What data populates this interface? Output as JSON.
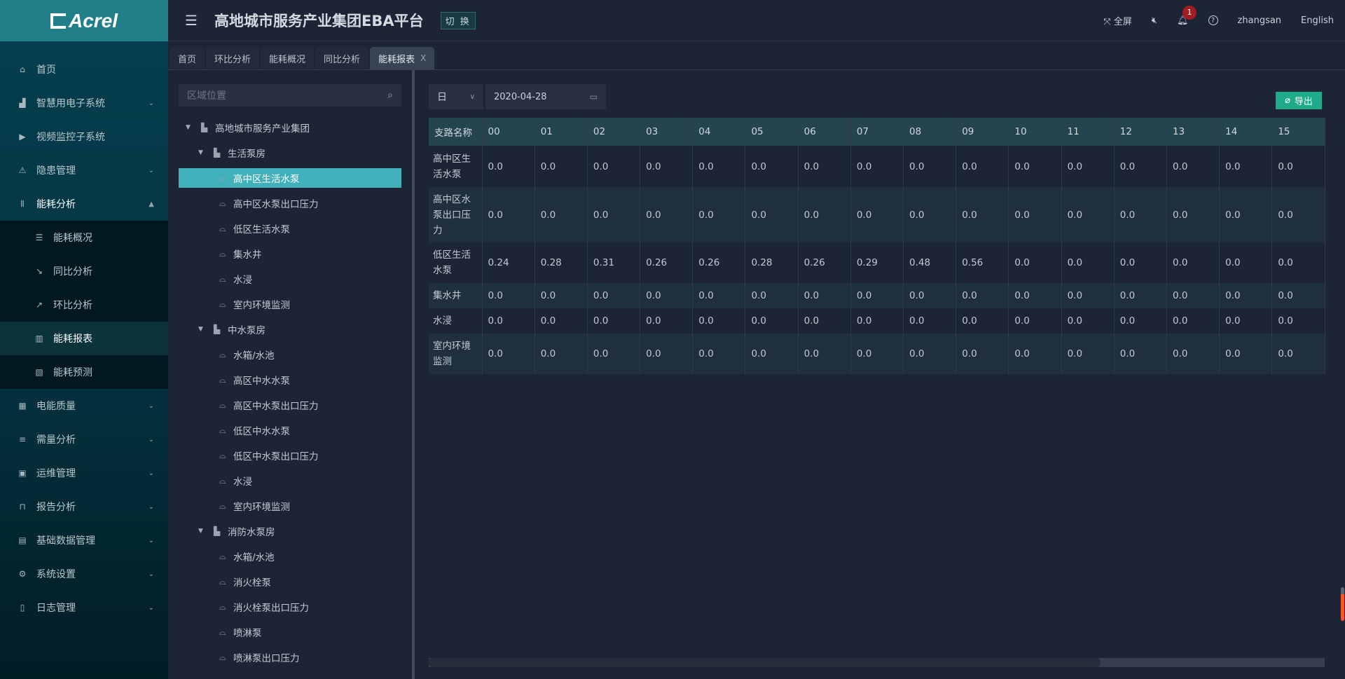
{
  "brand": {
    "logo_text": "Acrel"
  },
  "header": {
    "title": "高地城市服务产业集团EBA平台",
    "switch_label": "切 换",
    "fullscreen_label": "全屏",
    "notification_count": "1",
    "user": "zhangsan",
    "language": "English"
  },
  "sidebar": {
    "items": [
      {
        "label": "首页",
        "icon": "home-icon",
        "glyph": "⌂"
      },
      {
        "label": "智慧用电子系统",
        "icon": "chart-area-icon",
        "glyph": "▟",
        "chev": "⌄"
      },
      {
        "label": "视频监控子系统",
        "icon": "video-icon",
        "glyph": "▶"
      },
      {
        "label": "隐患管理",
        "icon": "warning-icon",
        "glyph": "⚠",
        "chev": "⌄"
      },
      {
        "label": "能耗分析",
        "icon": "energy-icon",
        "glyph": "⦀",
        "chev": "⌃",
        "open": true
      }
    ],
    "subitems": [
      {
        "label": "能耗概况",
        "icon": "list-icon",
        "glyph": "☰"
      },
      {
        "label": "同比分析",
        "icon": "trend-down-icon",
        "glyph": "↘"
      },
      {
        "label": "环比分析",
        "icon": "trend-up-icon",
        "glyph": "↗"
      },
      {
        "label": "能耗报表",
        "icon": "bar-chart-icon",
        "glyph": "▥",
        "active": true
      },
      {
        "label": "能耗预测",
        "icon": "line-chart-icon",
        "glyph": "▧"
      }
    ],
    "items_after": [
      {
        "label": "电能质量",
        "icon": "calendar-icon",
        "glyph": "▦",
        "chev": "⌄"
      },
      {
        "label": "需量分析",
        "icon": "lines-icon",
        "glyph": "≡",
        "chev": "⌄"
      },
      {
        "label": "运维管理",
        "icon": "maintenance-icon",
        "glyph": "▣",
        "chev": "⌄"
      },
      {
        "label": "报告分析",
        "icon": "lock-icon",
        "glyph": "⊓",
        "chev": "⌄"
      },
      {
        "label": "基础数据管理",
        "icon": "grid-icon",
        "glyph": "▤",
        "chev": "⌄"
      },
      {
        "label": "系统设置",
        "icon": "gear-icon",
        "glyph": "⚙",
        "chev": "⌄"
      },
      {
        "label": "日志管理",
        "icon": "log-icon",
        "glyph": "▯",
        "chev": "⌄"
      }
    ]
  },
  "tabs": [
    {
      "label": "首页"
    },
    {
      "label": "环比分析"
    },
    {
      "label": "能耗概况"
    },
    {
      "label": "同比分析"
    },
    {
      "label": "能耗报表",
      "active": true,
      "close": "X"
    }
  ],
  "tree": {
    "search_placeholder": "区域位置",
    "nodes": [
      {
        "label": "高地城市服务产业集团",
        "level": 0,
        "type": "building"
      },
      {
        "label": "生活泵房",
        "level": 1,
        "type": "building"
      },
      {
        "label": "高中区生活水泵",
        "level": 2,
        "type": "meter",
        "selected": true
      },
      {
        "label": "高中区水泵出口压力",
        "level": 2,
        "type": "meter"
      },
      {
        "label": "低区生活水泵",
        "level": 2,
        "type": "meter"
      },
      {
        "label": "集水井",
        "level": 2,
        "type": "meter"
      },
      {
        "label": "水浸",
        "level": 2,
        "type": "meter"
      },
      {
        "label": "室内环境监测",
        "level": 2,
        "type": "meter"
      },
      {
        "label": "中水泵房",
        "level": 1,
        "type": "building"
      },
      {
        "label": "水箱/水池",
        "level": 2,
        "type": "meter"
      },
      {
        "label": "高区中水水泵",
        "level": 2,
        "type": "meter"
      },
      {
        "label": "高区中水泵出口压力",
        "level": 2,
        "type": "meter"
      },
      {
        "label": "低区中水水泵",
        "level": 2,
        "type": "meter"
      },
      {
        "label": "低区中水泵出口压力",
        "level": 2,
        "type": "meter"
      },
      {
        "label": "水浸",
        "level": 2,
        "type": "meter"
      },
      {
        "label": "室内环境监测",
        "level": 2,
        "type": "meter"
      },
      {
        "label": "消防水泵房",
        "level": 1,
        "type": "building"
      },
      {
        "label": "水箱/水池",
        "level": 2,
        "type": "meter"
      },
      {
        "label": "消火栓泵",
        "level": 2,
        "type": "meter"
      },
      {
        "label": "消火栓泵出口压力",
        "level": 2,
        "type": "meter"
      },
      {
        "label": "喷淋泵",
        "level": 2,
        "type": "meter"
      },
      {
        "label": "喷淋泵出口压力",
        "level": 2,
        "type": "meter"
      }
    ]
  },
  "filters": {
    "period": "日",
    "date": "2020-04-28"
  },
  "export_label": "导出",
  "report": {
    "columns": [
      "支路名称",
      "00",
      "01",
      "02",
      "03",
      "04",
      "05",
      "06",
      "07",
      "08",
      "09",
      "10",
      "11",
      "12",
      "13",
      "14",
      "15"
    ],
    "rows": [
      {
        "name": "高中区生活水泵",
        "values": [
          "0.0",
          "0.0",
          "0.0",
          "0.0",
          "0.0",
          "0.0",
          "0.0",
          "0.0",
          "0.0",
          "0.0",
          "0.0",
          "0.0",
          "0.0",
          "0.0",
          "0.0",
          "0.0"
        ]
      },
      {
        "name": "高中区水泵出口压力",
        "values": [
          "0.0",
          "0.0",
          "0.0",
          "0.0",
          "0.0",
          "0.0",
          "0.0",
          "0.0",
          "0.0",
          "0.0",
          "0.0",
          "0.0",
          "0.0",
          "0.0",
          "0.0",
          "0.0"
        ]
      },
      {
        "name": "低区生活水泵",
        "values": [
          "0.24",
          "0.28",
          "0.31",
          "0.26",
          "0.26",
          "0.28",
          "0.26",
          "0.29",
          "0.48",
          "0.56",
          "0.0",
          "0.0",
          "0.0",
          "0.0",
          "0.0",
          "0.0"
        ]
      },
      {
        "name": "集水井",
        "values": [
          "0.0",
          "0.0",
          "0.0",
          "0.0",
          "0.0",
          "0.0",
          "0.0",
          "0.0",
          "0.0",
          "0.0",
          "0.0",
          "0.0",
          "0.0",
          "0.0",
          "0.0",
          "0.0"
        ]
      },
      {
        "name": "水浸",
        "values": [
          "0.0",
          "0.0",
          "0.0",
          "0.0",
          "0.0",
          "0.0",
          "0.0",
          "0.0",
          "0.0",
          "0.0",
          "0.0",
          "0.0",
          "0.0",
          "0.0",
          "0.0",
          "0.0"
        ]
      },
      {
        "name": "室内环境监测",
        "values": [
          "0.0",
          "0.0",
          "0.0",
          "0.0",
          "0.0",
          "0.0",
          "0.0",
          "0.0",
          "0.0",
          "0.0",
          "0.0",
          "0.0",
          "0.0",
          "0.0",
          "0.0",
          "0.0"
        ]
      }
    ]
  },
  "scroll": {
    "horizontal_position_percent": 0,
    "horizontal_visible_percent": 75,
    "page_scroll_percent": 80
  },
  "colors": {
    "accent": "#40b1ba",
    "export": "#1fab89",
    "badge": "#a31c24",
    "page_scroll": "#f05a24"
  }
}
